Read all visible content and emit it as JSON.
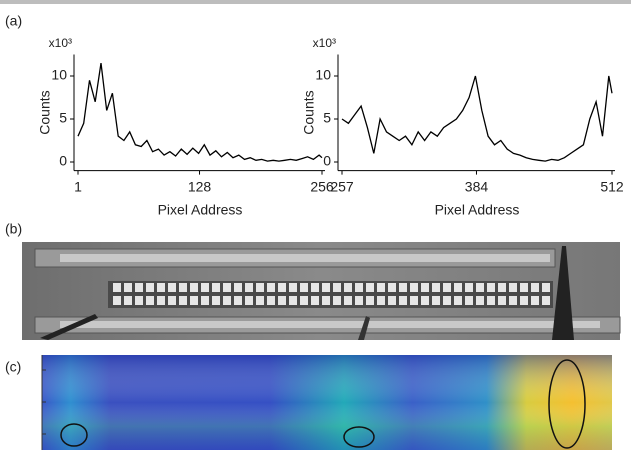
{
  "panel_labels": [
    "(a)",
    "(b)",
    "(c)"
  ],
  "chart_data": [
    {
      "type": "line",
      "xlabel": "Pixel Address",
      "ylabel": "Counts",
      "y_multiplier": "x10³",
      "x": [
        1,
        7,
        13,
        19,
        25,
        31,
        37,
        43,
        49,
        55,
        61,
        67,
        73,
        79,
        85,
        91,
        97,
        103,
        109,
        115,
        121,
        127,
        133,
        139,
        145,
        151,
        157,
        163,
        169,
        175,
        181,
        187,
        193,
        199,
        205,
        211,
        217,
        223,
        229,
        235,
        241,
        247,
        253,
        256
      ],
      "series": [
        {
          "color": "#000000",
          "values": [
            3.0,
            4.5,
            9.5,
            7,
            11.5,
            6,
            8,
            3,
            2.5,
            3.5,
            2,
            1.8,
            2.5,
            1.2,
            1.5,
            0.8,
            1.2,
            0.7,
            1.5,
            0.9,
            1.6,
            1,
            2,
            0.8,
            1.3,
            0.6,
            1.1,
            0.5,
            0.8,
            0.3,
            0.5,
            0.2,
            0.3,
            0.1,
            0.2,
            0.1,
            0.2,
            0.3,
            0.2,
            0.4,
            0.6,
            0.3,
            0.8,
            0.5
          ]
        }
      ],
      "xlim": [
        1,
        256
      ],
      "xticks": [
        1,
        128,
        256
      ],
      "ylim": [
        -1,
        12.5
      ],
      "yticks": [
        0,
        5,
        10
      ]
    },
    {
      "type": "line",
      "xlabel": "Pixel Address",
      "ylabel": "Counts",
      "y_multiplier": "x10³",
      "x": [
        257,
        263,
        269,
        275,
        281,
        287,
        293,
        299,
        305,
        311,
        317,
        323,
        329,
        335,
        341,
        347,
        353,
        359,
        365,
        371,
        377,
        383,
        389,
        395,
        401,
        407,
        413,
        419,
        425,
        431,
        437,
        443,
        449,
        455,
        461,
        467,
        473,
        479,
        485,
        491,
        497,
        503,
        509,
        512
      ],
      "series": [
        {
          "color": "#000000",
          "values": [
            5,
            4.5,
            5.5,
            6.5,
            4,
            1,
            5,
            3.5,
            3,
            2.5,
            3,
            2,
            3.5,
            2.5,
            3.5,
            3,
            4,
            4.5,
            5,
            6,
            7.5,
            10,
            6,
            3,
            2,
            2.5,
            1.5,
            1,
            0.8,
            0.5,
            0.3,
            0.2,
            0.1,
            0.3,
            0.2,
            0.5,
            1,
            1.5,
            2,
            5,
            7,
            3,
            10,
            8
          ]
        }
      ],
      "xlim": [
        257,
        512
      ],
      "xticks": [
        257,
        384,
        512
      ],
      "ylim": [
        -1,
        12.5
      ],
      "yticks": [
        0,
        5,
        10
      ]
    }
  ]
}
